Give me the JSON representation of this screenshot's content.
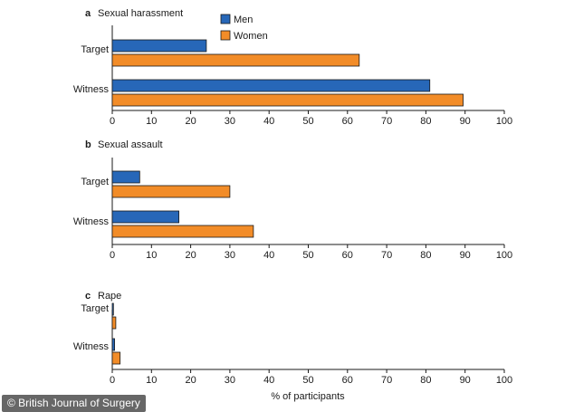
{
  "credit": "© British Journal of Surgery",
  "colors": {
    "men": "#2767b8",
    "women": "#f28c28",
    "stroke": "#1a1a1a"
  },
  "chart_data": {
    "type": "bar",
    "orientation": "horizontal",
    "legend": {
      "placement": "top-center",
      "entries": [
        "Men",
        "Women"
      ]
    },
    "xlabel": "% of participants",
    "xlim": [
      0,
      100
    ],
    "xticks": [
      0,
      10,
      20,
      30,
      40,
      50,
      60,
      70,
      80,
      90,
      100
    ],
    "grid": false,
    "panels": [
      {
        "letter": "a",
        "title": "Sexual harassment",
        "categories": [
          "Target",
          "Witness"
        ],
        "series": [
          {
            "name": "Men",
            "values": [
              24,
              81
            ]
          },
          {
            "name": "Women",
            "values": [
              63,
              89.5
            ]
          }
        ]
      },
      {
        "letter": "b",
        "title": "Sexual assault",
        "categories": [
          "Target",
          "Witness"
        ],
        "series": [
          {
            "name": "Men",
            "values": [
              7,
              17
            ]
          },
          {
            "name": "Women",
            "values": [
              30,
              36
            ]
          }
        ]
      },
      {
        "letter": "c",
        "title": "Rape",
        "categories": [
          "Target",
          "Witness"
        ],
        "series": [
          {
            "name": "Men",
            "values": [
              0.3,
              0.6
            ]
          },
          {
            "name": "Women",
            "values": [
              0.9,
              2
            ]
          }
        ]
      }
    ]
  }
}
